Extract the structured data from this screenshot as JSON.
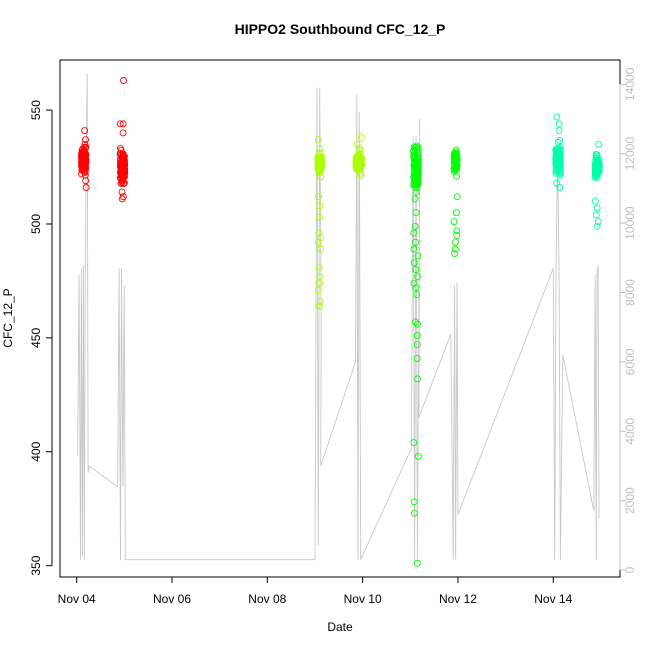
{
  "chart_data": {
    "type": "scatter",
    "title": "HIPPO2 Southbound CFC_12_P",
    "xlabel": "Date",
    "ylabel": "CFC_12_P",
    "x_unit": "days after Nov 04",
    "xlim": [
      -0.35,
      11.4
    ],
    "ylim": [
      345,
      572
    ],
    "y2lim": [
      -200,
      14700
    ],
    "x_ticks": [
      {
        "value": 0,
        "label": "Nov 04"
      },
      {
        "value": 2,
        "label": "Nov 06"
      },
      {
        "value": 4,
        "label": "Nov 08"
      },
      {
        "value": 6,
        "label": "Nov 10"
      },
      {
        "value": 8,
        "label": "Nov 12"
      },
      {
        "value": 10,
        "label": "Nov 14"
      }
    ],
    "y_ticks": [
      350,
      400,
      450,
      500,
      550
    ],
    "y2_ticks": [
      0,
      2000,
      4000,
      6000,
      8000,
      10000,
      12000,
      14000
    ],
    "series": [
      {
        "color": "#ff0000",
        "clusters": [
          {
            "x": 0.15,
            "spread": 0.1,
            "center": 528,
            "core_sd": 2.5,
            "n_core": 110,
            "outliers": [
              541,
              537,
              535,
              522,
              519,
              516,
              525,
              533
            ]
          },
          {
            "x": 0.96,
            "spread": 0.1,
            "center": 525,
            "core_sd": 3.5,
            "n_core": 80,
            "outliers": [
              563,
              544,
              544,
              540,
              512,
              511,
              514,
              518
            ]
          }
        ]
      },
      {
        "color": "#aaff00",
        "clusters": [
          {
            "x": 5.1,
            "spread": 0.08,
            "center": 527,
            "core_sd": 2.2,
            "n_core": 70,
            "outliers": [
              537,
              533,
              512,
              508,
              503,
              496,
              494,
              492,
              489,
              481,
              477,
              474,
              471,
              466,
              464
            ]
          },
          {
            "x": 5.92,
            "spread": 0.12,
            "center": 527,
            "core_sd": 2.2,
            "n_core": 70,
            "outliers": [
              538,
              535,
              533
            ]
          }
        ]
      },
      {
        "color": "#00ff00",
        "clusters": [
          {
            "x": 7.12,
            "spread": 0.1,
            "center": 524,
            "core_sd": 4.5,
            "n_core": 110,
            "outliers": [
              530,
              514,
              511,
              505,
              499,
              496,
              492,
              489,
              486,
              483,
              480,
              477,
              474,
              472,
              469,
              457,
              456,
              451,
              447,
              441,
              432,
              404,
              398,
              378,
              373,
              351
            ]
          },
          {
            "x": 7.95,
            "spread": 0.07,
            "center": 527,
            "core_sd": 2.2,
            "n_core": 60,
            "outliers": [
              531,
              521,
              512,
              505,
              501,
              497,
              495,
              492,
              489,
              487
            ]
          }
        ]
      },
      {
        "color": "#00ffaa",
        "clusters": [
          {
            "x": 10.1,
            "spread": 0.1,
            "center": 528,
            "core_sd": 3.2,
            "n_core": 110,
            "outliers": [
              547,
              544,
              541,
              518,
              516
            ]
          },
          {
            "x": 10.92,
            "spread": 0.09,
            "center": 525,
            "core_sd": 2.5,
            "n_core": 70,
            "outliers": [
              535,
              510,
              507,
              504,
              501,
              499
            ]
          }
        ]
      }
    ],
    "altitude_series": {
      "color": "#c8c8c8",
      "path": [
        [
          0.02,
          3300
        ],
        [
          0.05,
          8500
        ],
        [
          0.08,
          300
        ],
        [
          0.1,
          8700
        ],
        [
          0.12,
          400
        ],
        [
          0.14,
          8800
        ],
        [
          0.16,
          300
        ],
        [
          0.18,
          8800
        ],
        [
          0.2,
          12000
        ],
        [
          0.22,
          14300
        ],
        [
          0.24,
          2800
        ],
        [
          0.26,
          3000
        ],
        [
          0.86,
          2400
        ],
        [
          0.89,
          8700
        ],
        [
          0.92,
          300
        ],
        [
          0.94,
          8700
        ],
        [
          0.97,
          2400
        ],
        [
          1.0,
          8200
        ],
        [
          1.02,
          300
        ],
        [
          5.0,
          300
        ],
        [
          5.04,
          13900
        ],
        [
          5.07,
          700
        ],
        [
          5.1,
          13900
        ],
        [
          5.13,
          7000
        ],
        [
          5.12,
          3000
        ],
        [
          5.85,
          6000
        ],
        [
          5.88,
          13700
        ],
        [
          5.9,
          300
        ],
        [
          5.93,
          13200
        ],
        [
          5.96,
          300
        ],
        [
          7.02,
          3500
        ],
        [
          7.06,
          12500
        ],
        [
          7.09,
          300
        ],
        [
          7.12,
          12500
        ],
        [
          7.15,
          300
        ],
        [
          7.2,
          13000
        ],
        [
          7.18,
          4400
        ],
        [
          7.85,
          6800
        ],
        [
          7.9,
          300
        ],
        [
          7.93,
          8200
        ],
        [
          7.95,
          300
        ],
        [
          7.98,
          8300
        ],
        [
          8.0,
          1600
        ],
        [
          10.0,
          8700
        ],
        [
          10.03,
          300
        ],
        [
          10.06,
          8800
        ],
        [
          10.09,
          12000
        ],
        [
          10.12,
          8800
        ],
        [
          10.15,
          300
        ],
        [
          10.2,
          6200
        ],
        [
          10.85,
          1700
        ],
        [
          10.88,
          8500
        ],
        [
          10.9,
          300
        ],
        [
          10.92,
          8600
        ],
        [
          10.94,
          8800
        ],
        [
          10.96,
          1500
        ]
      ]
    }
  }
}
